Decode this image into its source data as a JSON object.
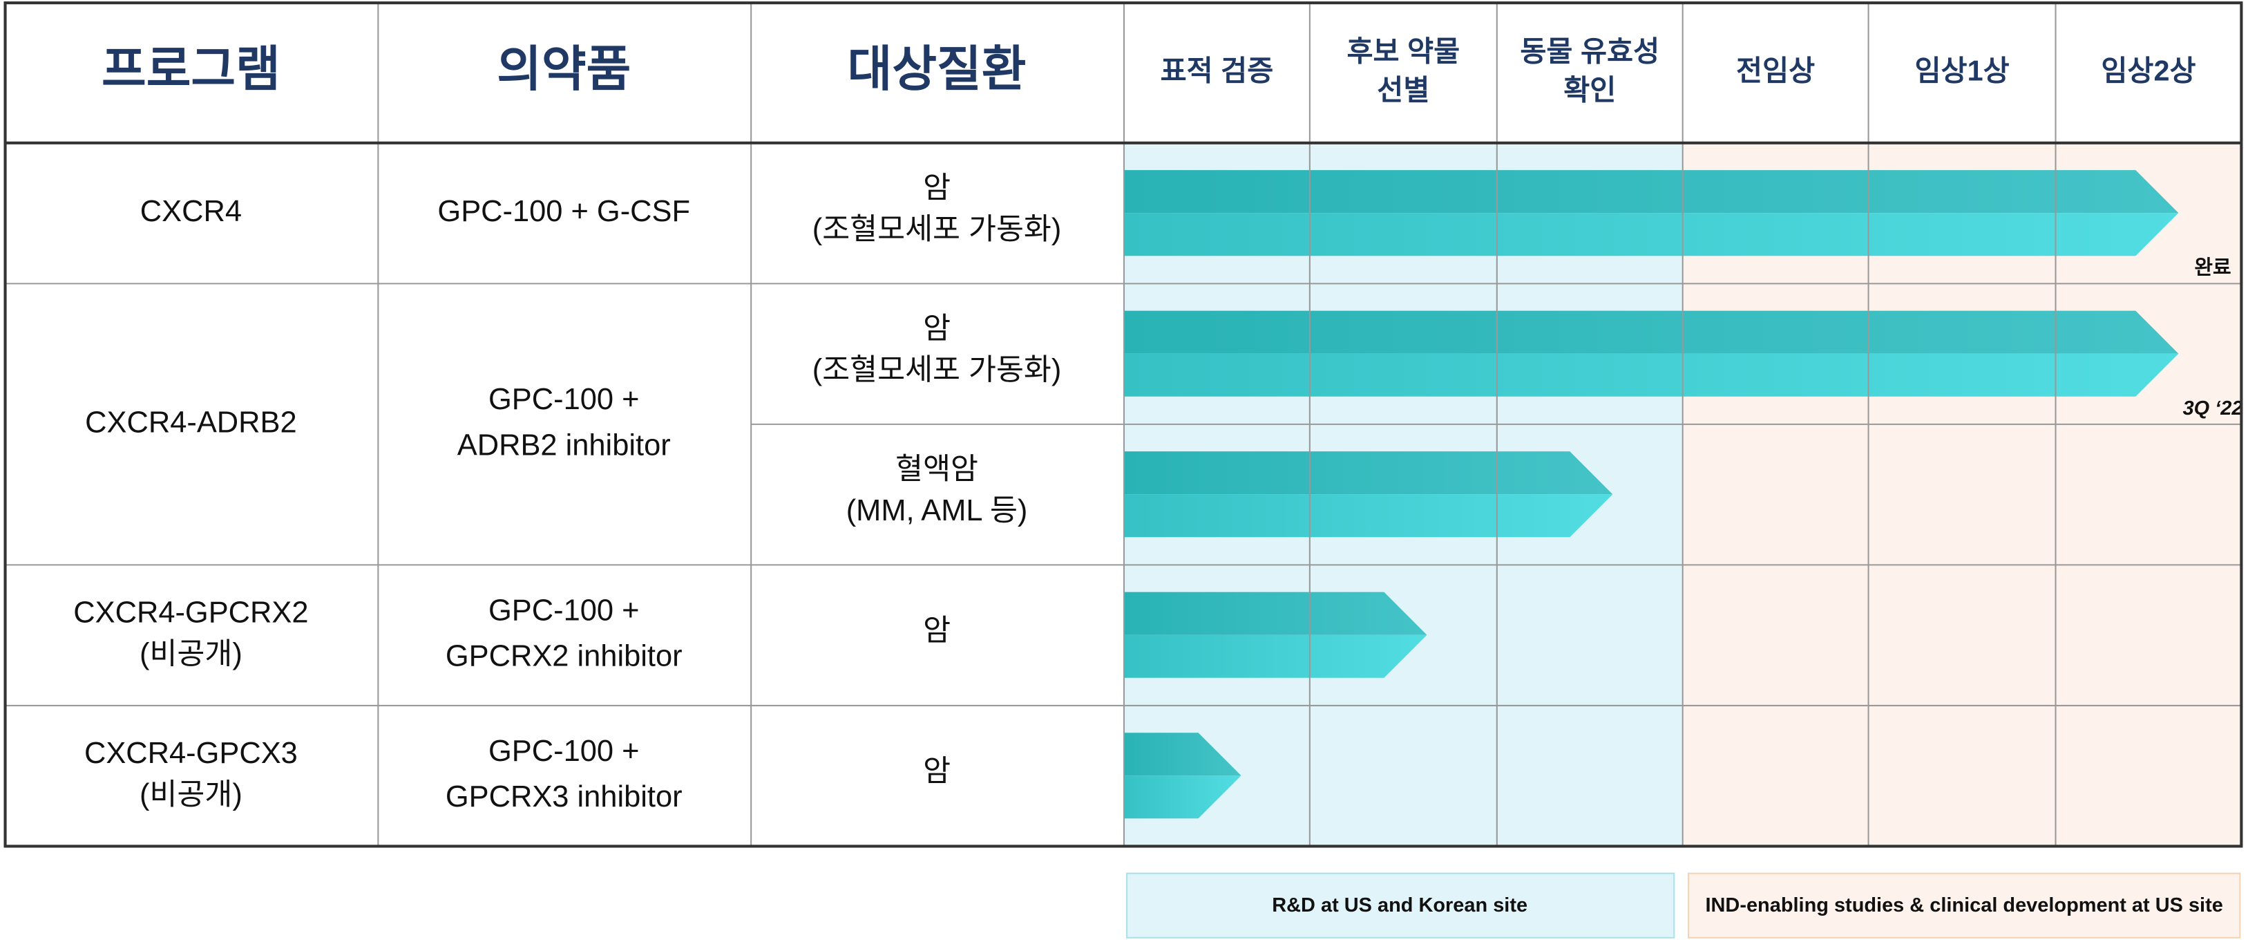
{
  "header": {
    "program": "프로그램",
    "drug": "의약품",
    "indication": "대상질환",
    "stages": [
      [
        "표적 검증"
      ],
      [
        "후보 약물",
        "선별"
      ],
      [
        "동물 유효성",
        "확인"
      ],
      [
        "전임상"
      ],
      [
        "임상1상"
      ],
      [
        "임상2상"
      ]
    ]
  },
  "rows": [
    {
      "program": [
        "CXCR4"
      ],
      "drug": [
        "GPC-100 + G-CSF"
      ],
      "indications": [
        {
          "lines": [
            "암",
            "(조혈모세포 가동화)"
          ],
          "note": "완료"
        }
      ]
    },
    {
      "program": [
        "CXCR4-ADRB2"
      ],
      "drug": [
        "GPC-100 +",
        "ADRB2 inhibitor"
      ],
      "indications": [
        {
          "lines": [
            "암",
            "(조혈모세포 가동화)"
          ],
          "note": "3Q ‘22"
        },
        {
          "lines": [
            "혈액암",
            "(MM, AML 등)"
          ]
        }
      ]
    },
    {
      "program": [
        "CXCR4-GPCRX2",
        "(비공개)"
      ],
      "drug": [
        "GPC-100 +",
        "GPCRX2 inhibitor"
      ],
      "indications": [
        {
          "lines": [
            "암"
          ]
        }
      ]
    },
    {
      "program": [
        "CXCR4-GPCX3",
        "(비공개)"
      ],
      "drug": [
        "GPC-100 +",
        "GPCRX3 inhibitor"
      ],
      "indications": [
        {
          "lines": [
            "암"
          ]
        }
      ]
    }
  ],
  "legend": [
    "R&D at US and Korean site",
    "IND-enabling studies & clinical development at US site"
  ]
}
